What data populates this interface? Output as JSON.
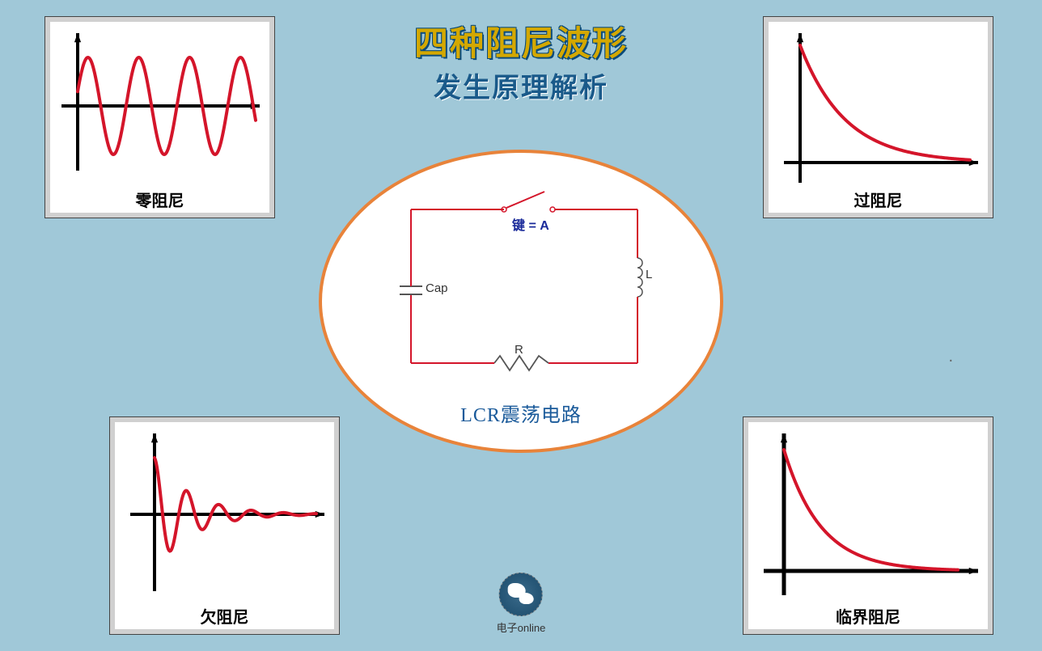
{
  "background_color": "#a0c8d8",
  "title": {
    "main": "四种阻尼波形",
    "sub": "发生原理解析",
    "main_color": "#d4a800",
    "main_outline": "#0a4a7a",
    "sub_color": "#1a5a8a",
    "main_fontsize": 42,
    "sub_fontsize": 34
  },
  "panels": {
    "top_left": {
      "label": "零阻尼",
      "type": "undamped_sine",
      "curve_color": "#d4152a",
      "axis_color": "#000000",
      "stroke_width": 4,
      "cycles": 3.5,
      "amplitude": 60
    },
    "top_right": {
      "label": "过阻尼",
      "type": "overdamped_decay",
      "curve_color": "#d4152a",
      "axis_color": "#000000",
      "stroke_width": 4,
      "decay_rate": 0.018
    },
    "bottom_left": {
      "label": "欠阻尼",
      "type": "underdamped_sine",
      "curve_color": "#d4152a",
      "axis_color": "#000000",
      "stroke_width": 4,
      "cycles": 5,
      "amplitude": 70,
      "decay_rate": 0.022
    },
    "bottom_right": {
      "label": "临界阻尼",
      "type": "critical_decay",
      "curve_color": "#d4152a",
      "axis_color": "#000000",
      "stroke_width": 4,
      "decay_rate": 0.022
    }
  },
  "center": {
    "circuit_label": "LCR震荡电路",
    "circuit_label_color": "#1a5a9a",
    "border_color": "#e8833a",
    "wire_color": "#d4152a",
    "key_label": "键 = A",
    "key_label_color": "#1a2a9a",
    "cap_label": "Cap",
    "L_label": "L",
    "R_label": "R",
    "component_label_color": "#333333"
  },
  "logo": {
    "text": "电子online",
    "globe_color": "#2a5a7a"
  }
}
